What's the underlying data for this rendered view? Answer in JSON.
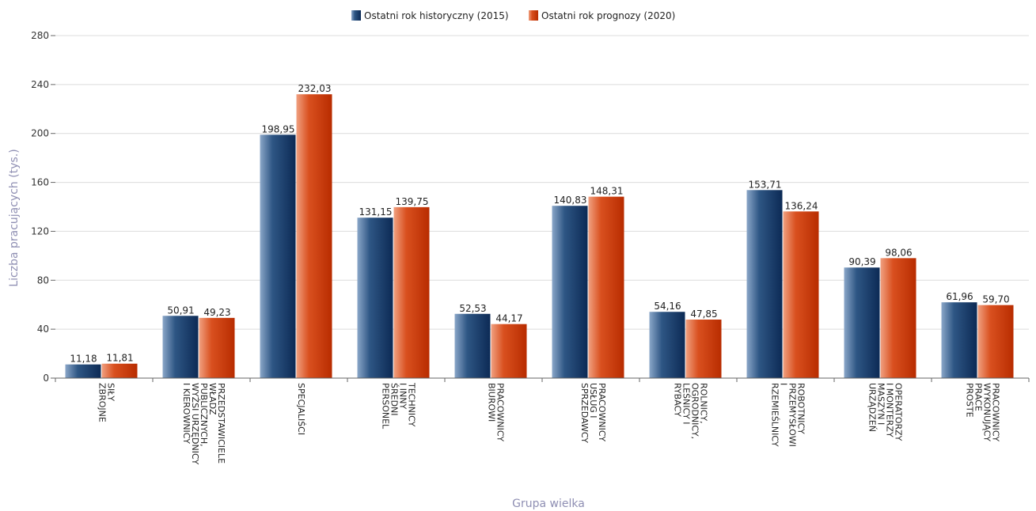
{
  "chart_data": {
    "type": "bar",
    "xlabel": "Grupa wielka",
    "ylabel": "Liczba pracujących (tys.)",
    "ylim": [
      0,
      280
    ],
    "yticks": [
      0,
      40,
      80,
      120,
      160,
      200,
      240,
      280
    ],
    "grid": true,
    "legend_position": "top-center",
    "categories": [
      [
        "SIŁY",
        "ZBROJNE"
      ],
      [
        "PRZEDSTAWICIELE",
        "WŁADZ",
        "PUBLICZNYCH,",
        "WYŻSI URZĘDNICY",
        "I KIEROWNICY"
      ],
      [
        "SPECJALIŚCI"
      ],
      [
        "TECHNICY",
        "I INNY",
        "ŚREDNI",
        "PERSONEL"
      ],
      [
        "PRACOWNICY",
        "BIUROWI"
      ],
      [
        "PRACOWNICY",
        "USŁUG I",
        "SPRZEDAWCY"
      ],
      [
        "ROLNICY,",
        "OGRODNICY,",
        "LEŚNICY I",
        "RYBACY"
      ],
      [
        "ROBOTNICY",
        "PRZEMYSŁOWI",
        "I",
        "RZEMIEŚLNICY"
      ],
      [
        "OPERATORZY",
        "I MONTERZY",
        "MASZYN I",
        "URZĄDZEŃ"
      ],
      [
        "PRACOWNICY",
        "WYKONUJĄCY",
        "PRACE",
        "PROSTE"
      ]
    ],
    "series": [
      {
        "name": "Ostatni rok historyczny (2015)",
        "color": "#1f3f6e",
        "values": [
          11.18,
          50.91,
          198.95,
          131.15,
          52.53,
          140.83,
          54.16,
          153.71,
          90.39,
          61.96
        ],
        "labels": [
          "11,18",
          "50,91",
          "198,95",
          "131,15",
          "52,53",
          "140,83",
          "54,16",
          "153,71",
          "90,39",
          "61,96"
        ]
      },
      {
        "name": "Ostatni rok prognozy (2020)",
        "color": "#cc3300",
        "values": [
          11.81,
          49.23,
          232.03,
          139.75,
          44.17,
          148.31,
          47.85,
          136.24,
          98.06,
          59.7
        ],
        "labels": [
          "11,81",
          "49,23",
          "232,03",
          "139,75",
          "44,17",
          "148,31",
          "47,85",
          "136,24",
          "98,06",
          "59,70"
        ]
      }
    ]
  }
}
